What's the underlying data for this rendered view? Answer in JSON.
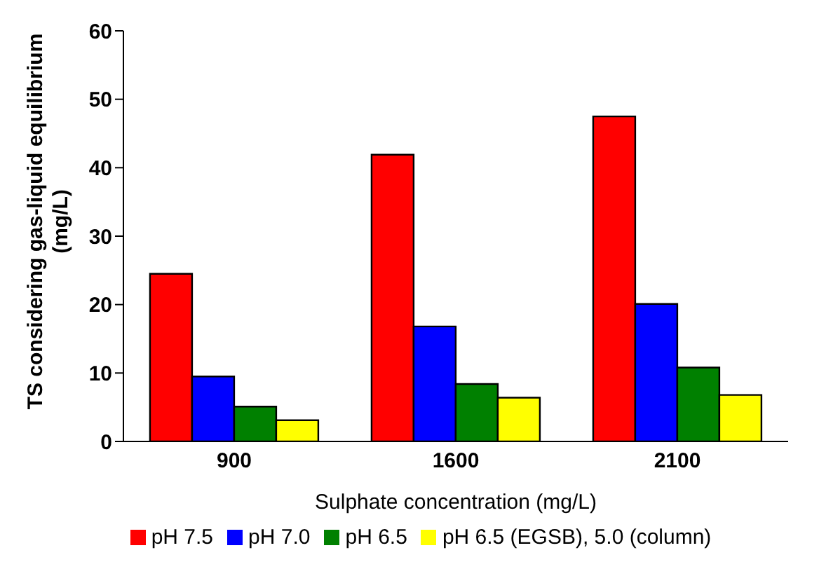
{
  "chart_data": {
    "type": "bar",
    "xlabel": "Sulphate concentration (mg/L)",
    "ylabel": "TS considering gas-liquid equilibrium  (mg/L)",
    "categories": [
      "900",
      "1600",
      "2100"
    ],
    "series": [
      {
        "name": "pH 7.5",
        "color": "#ff0000",
        "values": [
          24.5,
          41.9,
          47.5
        ]
      },
      {
        "name": "pH 7.0",
        "color": "#0000ff",
        "values": [
          9.5,
          16.8,
          20.1
        ]
      },
      {
        "name": "pH 6.5",
        "color": "#008000",
        "values": [
          5.1,
          8.4,
          10.8
        ]
      },
      {
        "name": "pH 6.5 (EGSB), 5.0 (column)",
        "color": "#ffff00",
        "values": [
          3.1,
          6.4,
          6.8
        ]
      }
    ],
    "ylim": [
      0,
      60
    ],
    "yticks": [
      0,
      10,
      20,
      30,
      40,
      50,
      60
    ],
    "grid": false,
    "legend": "bottom"
  }
}
